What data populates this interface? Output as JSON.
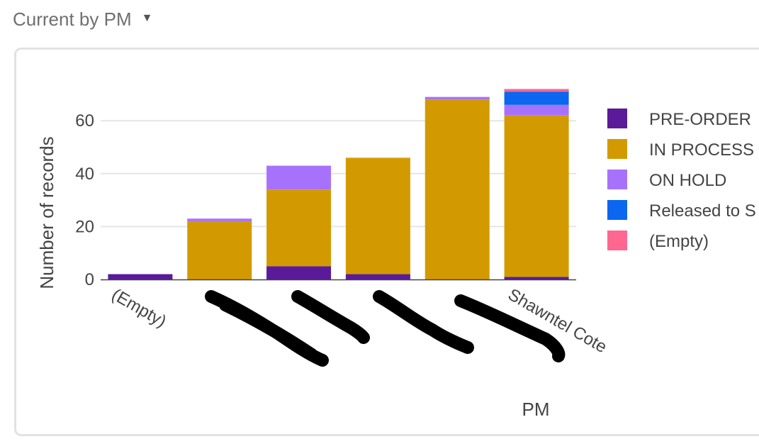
{
  "header": {
    "title": "Current by PM",
    "caret": "▼",
    "caret_icon": "triangle-down-icon"
  },
  "chart_data": {
    "type": "bar",
    "stacked": true,
    "categories": [
      "(Empty)",
      "",
      "",
      "",
      "",
      "Shawntel Cote"
    ],
    "series": [
      {
        "name": "PRE-ORDER",
        "color": "#5a1a99",
        "values": [
          2,
          0,
          5,
          2,
          0,
          1
        ]
      },
      {
        "name": "IN PROCESS",
        "color": "#d39a00",
        "values": [
          0,
          22,
          29,
          44,
          68,
          61
        ]
      },
      {
        "name": "ON HOLD",
        "color": "#a772fb",
        "values": [
          0,
          1,
          9,
          0,
          1,
          4
        ]
      },
      {
        "name": "Released to S",
        "color": "#0b66f0",
        "values": [
          0,
          0,
          0,
          0,
          0,
          5
        ]
      },
      {
        "name": "(Empty)",
        "color": "#ff6690",
        "values": [
          0,
          0,
          0,
          0,
          0,
          1
        ]
      }
    ],
    "xlabel": "PM",
    "ylabel": "Number of records",
    "ylim": [
      0,
      75
    ],
    "yticks": [
      0,
      20,
      40,
      60
    ],
    "grid": true,
    "legend_position": "right"
  }
}
